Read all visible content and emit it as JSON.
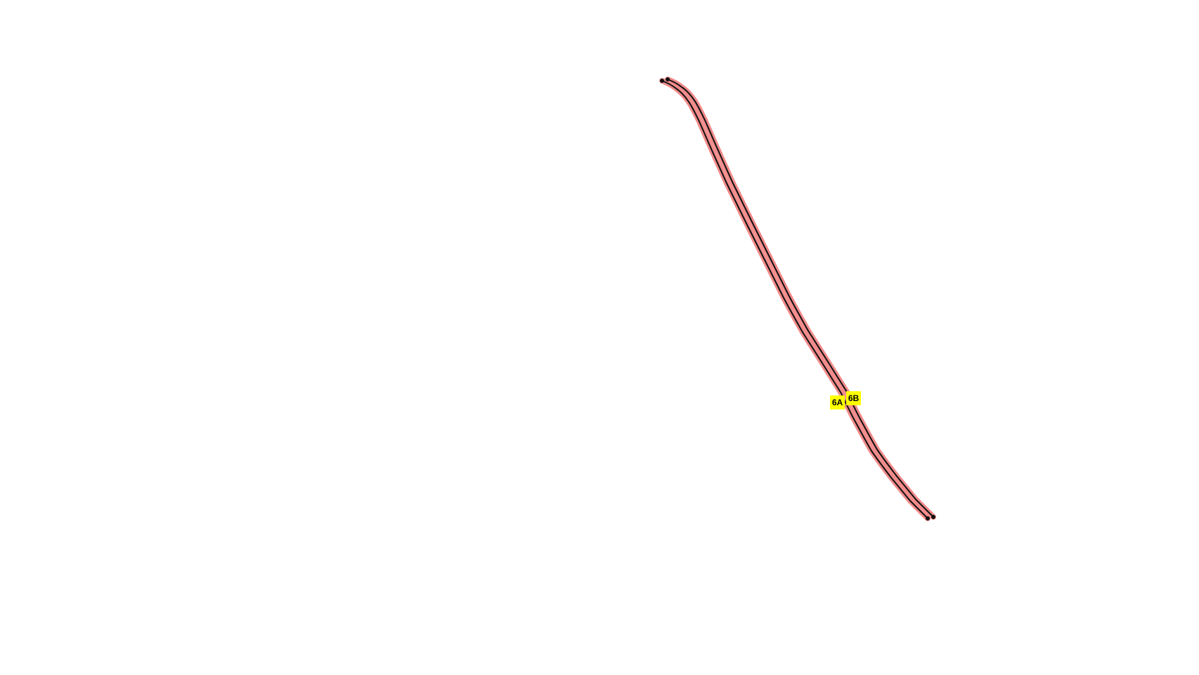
{
  "routes": [
    {
      "label": "6A"
    },
    {
      "label": "6B"
    }
  ]
}
